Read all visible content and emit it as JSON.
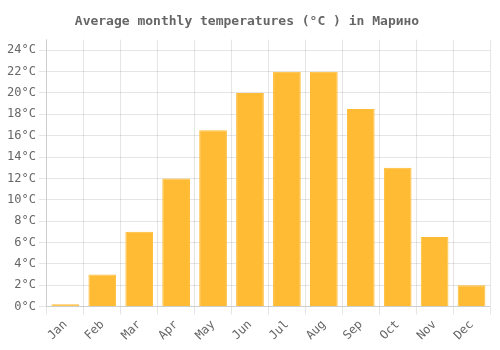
{
  "chart_data": {
    "type": "bar",
    "title": "Average monthly temperatures (°C ) in Марино",
    "categories": [
      "Jan",
      "Feb",
      "Mar",
      "Apr",
      "May",
      "Jun",
      "Jul",
      "Aug",
      "Sep",
      "Oct",
      "Nov",
      "Dec"
    ],
    "values": [
      0.2,
      3.0,
      7.0,
      12.0,
      16.5,
      20.0,
      22.0,
      22.0,
      18.5,
      13.0,
      6.5,
      2.0
    ],
    "color": "#FFBB33",
    "ylim": [
      0,
      25
    ],
    "yticks": [
      {
        "value": 0,
        "label": "0°C"
      },
      {
        "value": 2,
        "label": "2°C"
      },
      {
        "value": 4,
        "label": "4°C"
      },
      {
        "value": 6,
        "label": "6°C"
      },
      {
        "value": 8,
        "label": "8°C"
      },
      {
        "value": 10,
        "label": "10°C"
      },
      {
        "value": 12,
        "label": "12°C"
      },
      {
        "value": 14,
        "label": "14°C"
      },
      {
        "value": 16,
        "label": "16°C"
      },
      {
        "value": 18,
        "label": "18°C"
      },
      {
        "value": 20,
        "label": "20°C"
      },
      {
        "value": 22,
        "label": "22°C"
      },
      {
        "value": 24,
        "label": "24°C"
      }
    ],
    "grid": true
  }
}
